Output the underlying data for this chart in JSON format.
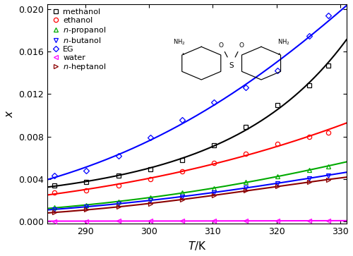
{
  "title": "",
  "xlabel": "T/K",
  "ylabel": "x",
  "xlim": [
    284,
    331
  ],
  "ylim": [
    -0.0002,
    0.0205
  ],
  "yticks": [
    0.0,
    0.004,
    0.008,
    0.012,
    0.016,
    0.02
  ],
  "xticks": [
    290,
    300,
    310,
    320,
    330
  ],
  "series": [
    {
      "name": "methanol",
      "color": "#000000",
      "line_color": "#000000",
      "marker": "s",
      "T": [
        285.15,
        290.15,
        295.15,
        300.15,
        305.15,
        310.15,
        315.15,
        320.15,
        325.15,
        328.15
      ],
      "x": [
        0.0034,
        0.00375,
        0.0043,
        0.0049,
        0.0058,
        0.0072,
        0.0089,
        0.011,
        0.0128,
        0.0147
      ]
    },
    {
      "name": "ethanol",
      "color": "#ff0000",
      "line_color": "#ff0000",
      "marker": "o",
      "T": [
        285.15,
        290.15,
        295.15,
        300.15,
        305.15,
        310.15,
        315.15,
        320.15,
        325.15,
        328.15
      ],
      "x": [
        0.0027,
        0.00295,
        0.0034,
        0.004,
        0.0047,
        0.0055,
        0.0064,
        0.0073,
        0.008,
        0.0084
      ]
    },
    {
      "name": "n-propanol",
      "color": "#00aa00",
      "line_color": "#00aa00",
      "marker": "^",
      "T": [
        285.15,
        290.15,
        295.15,
        300.15,
        305.15,
        310.15,
        315.15,
        320.15,
        325.15,
        328.15
      ],
      "x": [
        0.0013,
        0.00155,
        0.00185,
        0.00225,
        0.0027,
        0.00315,
        0.0037,
        0.00425,
        0.00485,
        0.0052
      ]
    },
    {
      "name": "n-butanol",
      "color": "#0000ff",
      "line_color": "#0000ff",
      "marker": "v",
      "T": [
        285.15,
        290.15,
        295.15,
        300.15,
        305.15,
        310.15,
        315.15,
        320.15,
        325.15,
        328.15
      ],
      "x": [
        0.00115,
        0.00138,
        0.00165,
        0.00198,
        0.00236,
        0.00272,
        0.00318,
        0.00362,
        0.00405,
        0.00435
      ]
    },
    {
      "name": "EG",
      "color": "#0000ff",
      "line_color": "#0000ff",
      "marker": "D",
      "T": [
        285.15,
        290.15,
        295.15,
        300.15,
        305.15,
        310.15,
        315.15,
        320.15,
        325.15,
        328.15
      ],
      "x": [
        0.0043,
        0.0048,
        0.0062,
        0.0079,
        0.0096,
        0.0112,
        0.0126,
        0.0142,
        0.0175,
        0.0194
      ]
    },
    {
      "name": "water",
      "color": "#ff00ff",
      "line_color": "#ff00ff",
      "marker": "<",
      "T": [
        285.15,
        290.15,
        295.15,
        300.15,
        305.15,
        310.15,
        315.15,
        320.15,
        325.15,
        328.15
      ],
      "x": [
        3e-05,
        3.2e-05,
        3.5e-05,
        3.8e-05,
        4.2e-05,
        4.6e-05,
        5.2e-05,
        5.8e-05,
        6.5e-05,
        7e-05
      ]
    },
    {
      "name": "n-heptanol",
      "color": "#8B0000",
      "line_color": "#8B0000",
      "marker": ">",
      "T": [
        285.15,
        290.15,
        295.15,
        300.15,
        305.15,
        310.15,
        315.15,
        320.15,
        325.15,
        328.15
      ],
      "x": [
        0.00085,
        0.0011,
        0.00138,
        0.00168,
        0.00205,
        0.00248,
        0.0029,
        0.00332,
        0.0037,
        0.00395
      ]
    }
  ],
  "background_color": "#ffffff",
  "legend_fontsize": 8.0,
  "axis_fontsize": 11,
  "tick_fontsize": 9
}
